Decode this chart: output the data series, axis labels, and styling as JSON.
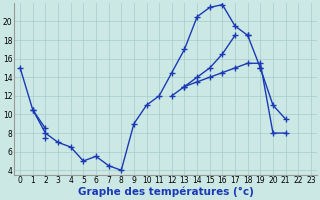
{
  "title": "Graphe des températures (°c)",
  "x": [
    0,
    1,
    2,
    3,
    4,
    5,
    6,
    7,
    8,
    9,
    10,
    11,
    12,
    13,
    14,
    15,
    16,
    17,
    18,
    19,
    20,
    21,
    22,
    23
  ],
  "y1": [
    15,
    10.5,
    8,
    7,
    6.5,
    5,
    5.5,
    4.5,
    4,
    9,
    11,
    12,
    14.5,
    17,
    20.5,
    21.5,
    21.8,
    19.5,
    18.5,
    null,
    null,
    null,
    null,
    null
  ],
  "y2": [
    null,
    null,
    null,
    null,
    null,
    null,
    null,
    null,
    null,
    null,
    null,
    null,
    null,
    null,
    null,
    null,
    null,
    null,
    null,
    15,
    11,
    9.5,
    null,
    null
  ],
  "y3": [
    null,
    10.5,
    8.5,
    null,
    null,
    null,
    null,
    null,
    null,
    null,
    null,
    null,
    12,
    13,
    14,
    15,
    16.5,
    18.5,
    null,
    null,
    null,
    null,
    null,
    null
  ],
  "y4": [
    null,
    null,
    7.5,
    null,
    null,
    null,
    null,
    null,
    null,
    null,
    null,
    null,
    null,
    13,
    13.5,
    14,
    14.5,
    15,
    15.5,
    15.5,
    8,
    8,
    null,
    null
  ],
  "y5": [
    null,
    null,
    null,
    null,
    null,
    null,
    null,
    null,
    null,
    null,
    null,
    null,
    null,
    null,
    null,
    null,
    null,
    null,
    18.5,
    15,
    null,
    null,
    null,
    null
  ],
  "ylim_min": 3.5,
  "ylim_max": 22,
  "yticks": [
    4,
    6,
    8,
    10,
    12,
    14,
    16,
    18,
    20
  ],
  "bg_color": "#cce8e4",
  "line_color": "#1a3ab5",
  "grid_color": "#a8ccc8",
  "tick_fontsize": 5.5,
  "xlabel_fontsize": 7.5,
  "marker": "+",
  "markersize": 4,
  "linewidth": 1.0
}
